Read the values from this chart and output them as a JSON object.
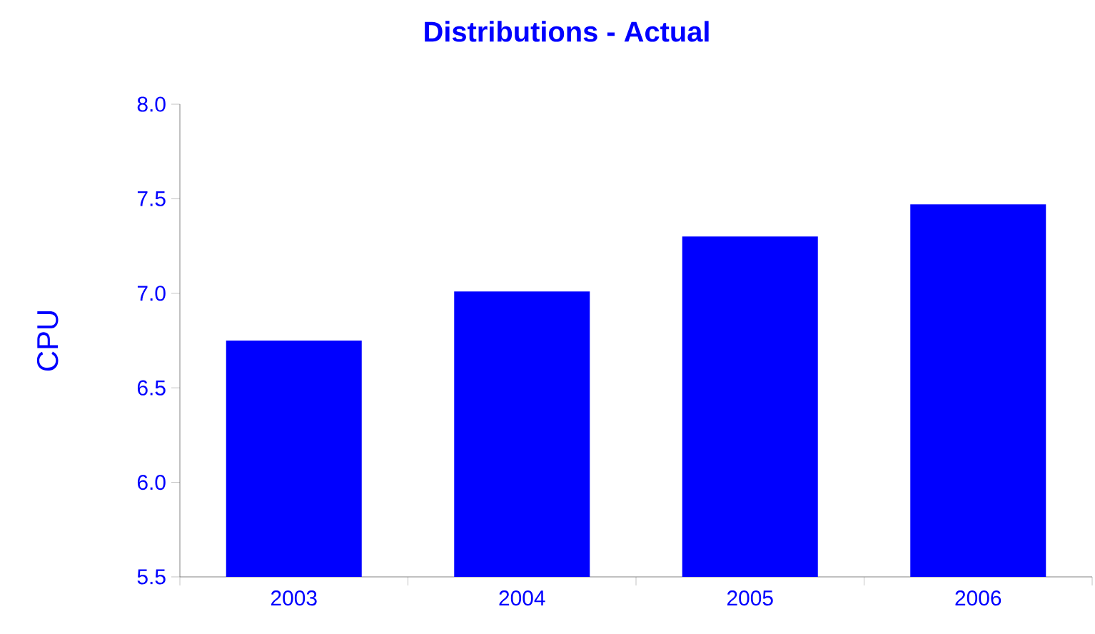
{
  "chart_data": {
    "type": "bar",
    "title": "Distributions - Actual",
    "ylabel": "CPU",
    "categories": [
      "2003",
      "2004",
      "2005",
      "2006"
    ],
    "values": [
      6.75,
      7.01,
      7.3,
      7.47
    ],
    "color": "#0000ff",
    "ylim": [
      5.5,
      8.0
    ],
    "yticks": [
      {
        "value": 5.5,
        "label": "5.5"
      },
      {
        "value": 6.0,
        "label": "6.0"
      },
      {
        "value": 6.5,
        "label": "6.5"
      },
      {
        "value": 7.0,
        "label": "7.0"
      },
      {
        "value": 7.5,
        "label": "7.5"
      },
      {
        "value": 8.0,
        "label": "8.0"
      }
    ],
    "grid": false
  }
}
